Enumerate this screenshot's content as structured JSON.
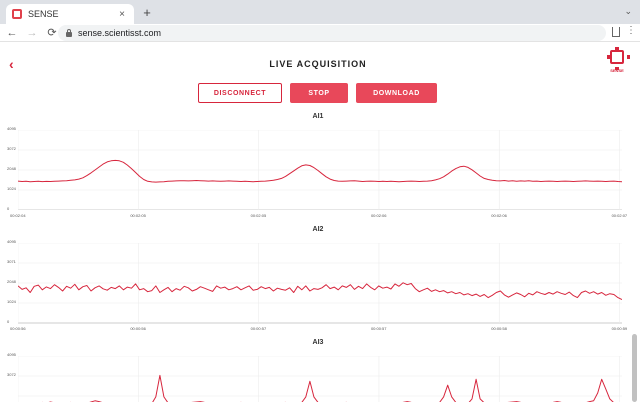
{
  "browser": {
    "tab_title": "SENSE",
    "close_glyph": "×",
    "newtab_glyph": "+",
    "window_menu_glyph": "⌄",
    "url": "sense.scientisst.com",
    "back_glyph": "←",
    "forward_glyph": "→",
    "reload_glyph": "⟳",
    "more_glyph": "⋮"
  },
  "page": {
    "back_glyph": "‹",
    "title": "LIVE ACQUISITION",
    "logo_text": "SENSE",
    "buttons": {
      "disconnect": "DISCONNECT",
      "stop": "STOP",
      "download": "DOWNLOAD"
    },
    "accent_color": "#d7263d"
  },
  "chart_data": [
    {
      "type": "line",
      "title": "AI1",
      "yticks": [
        "4095",
        "3072",
        "2048",
        "1024",
        "0"
      ],
      "ylim": [
        0,
        4095
      ],
      "xticks": [
        "00:02:04",
        "00:02:05",
        "00:02:05",
        "00:02:06",
        "00:02:06",
        "00:02:07"
      ],
      "grid": true,
      "series": [
        {
          "values": [
            1480,
            1460,
            1470,
            1450,
            1460,
            1470,
            1455,
            1465,
            1460,
            1470,
            1480,
            1490,
            1500,
            1520,
            1540,
            1580,
            1650,
            1760,
            1900,
            2050,
            2200,
            2350,
            2460,
            2520,
            2540,
            2520,
            2440,
            2300,
            2120,
            1920,
            1720,
            1560,
            1470,
            1440,
            1430,
            1440,
            1450,
            1470,
            1480,
            1490,
            1500,
            1500,
            1490,
            1500,
            1510,
            1500,
            1490,
            1480,
            1490,
            1480,
            1470,
            1480,
            1490,
            1480,
            1470,
            1460,
            1470,
            1460,
            1450,
            1460,
            1470,
            1480,
            1500,
            1520,
            1560,
            1620,
            1720,
            1860,
            2000,
            2140,
            2260,
            2310,
            2280,
            2170,
            2020,
            1860,
            1700,
            1580,
            1510,
            1480,
            1470,
            1480,
            1490,
            1500,
            1480,
            1460,
            1470,
            1480,
            1470,
            1460,
            1470,
            1460,
            1470,
            1460,
            1450,
            1460,
            1470,
            1480,
            1470,
            1460,
            1470,
            1480,
            1500,
            1540,
            1600,
            1700,
            1840,
            1990,
            2120,
            2210,
            2240,
            2180,
            2060,
            1900,
            1740,
            1620,
            1560,
            1520,
            1500,
            1490,
            1510,
            1480,
            1500,
            1470,
            1490,
            1480,
            1500,
            1470,
            1480,
            1460,
            1470,
            1480,
            1470,
            1460,
            1470,
            1480,
            1470,
            1460,
            1470,
            1480,
            1490,
            1480,
            1470,
            1480,
            1470,
            1460,
            1470,
            1480,
            1460,
            1450
          ]
        }
      ]
    },
    {
      "type": "line",
      "title": "AI2",
      "yticks": [
        "4095",
        "3071",
        "2048",
        "1024",
        "0"
      ],
      "ylim": [
        0,
        4095
      ],
      "xticks": [
        "00:00:56",
        "00:00:56",
        "00:00:57",
        "00:00:57",
        "00:00:58",
        "00:00:59"
      ],
      "grid": true,
      "series": [
        {
          "values": [
            1900,
            1720,
            1800,
            1560,
            1880,
            1940,
            1700,
            1850,
            1760,
            1960,
            1820,
            1640,
            1880,
            1780,
            1980,
            1700,
            1860,
            1920,
            1640,
            1800,
            1900,
            1750,
            1680,
            1820,
            1760,
            1900,
            1700,
            1840,
            1780,
            2000,
            1700,
            1760,
            1600,
            1660,
            1900,
            1560,
            1700,
            1820,
            1600,
            1760,
            1680,
            1880,
            1800,
            1640,
            1720,
            1860,
            1780,
            1700,
            1620,
            1900,
            1780,
            1840,
            1700,
            1760,
            1860,
            1700,
            1800,
            1900,
            1680,
            1720,
            1860,
            1760,
            1820,
            1640,
            1780,
            1720,
            1680,
            1800,
            1560,
            1880,
            1700,
            1900,
            1640,
            1760,
            1720,
            1800,
            1960,
            1760,
            1840,
            1700,
            1900,
            1820,
            1960,
            1720,
            1880,
            1760,
            2000,
            1820,
            1700,
            1900,
            1780,
            1840,
            1740,
            2000,
            1880,
            2060,
            1960,
            2020,
            1760,
            1600,
            1700,
            1780,
            1620,
            1700,
            1600,
            1660,
            1540,
            1600,
            1500,
            1560,
            1440,
            1500,
            1400,
            1480,
            1360,
            1460,
            1300,
            1420,
            1560,
            1640,
            1440,
            1320,
            1440,
            1540,
            1460,
            1340,
            1520,
            1440,
            1600,
            1520,
            1460,
            1560,
            1480,
            1600,
            1520,
            1460,
            1580,
            1400,
            1300,
            1560,
            1640,
            1520,
            1600,
            1480,
            1560,
            1420,
            1500,
            1460,
            1300,
            1200
          ]
        }
      ]
    },
    {
      "type": "line",
      "title": "AI3",
      "yticks": [
        "4095",
        "3072"
      ],
      "ylim": [
        0,
        4095
      ],
      "grid": true,
      "series": [
        {
          "values": [
            1640,
            1620,
            1680,
            1640,
            1700,
            1660,
            1720,
            1680,
            1740,
            1700,
            1660,
            1640,
            1680,
            1720,
            1660,
            1640,
            1620,
            1680,
            1740,
            1800,
            1760,
            1700,
            1660,
            1620,
            1600,
            1640,
            1680,
            1640,
            1620,
            1660,
            1700,
            1680,
            1640,
            1660,
            2000,
            3100,
            2000,
            1700,
            1660,
            1640,
            1620,
            1660,
            1700,
            1720,
            1740,
            1760,
            1720,
            1700,
            1680,
            1660,
            1640,
            1620,
            1660,
            1680,
            1700,
            1720,
            1680,
            1660,
            1640,
            1660,
            1680,
            1640,
            1620,
            1640,
            1680,
            1700,
            1720,
            1680,
            1640,
            1660,
            1720,
            2000,
            2800,
            2000,
            1720,
            1680,
            1660,
            1640,
            1660,
            1680,
            1700,
            1720,
            1700,
            1680,
            1660,
            1640,
            1660,
            1680,
            1700,
            1680,
            1660,
            1640,
            1620,
            1640,
            1680,
            1720,
            1760,
            1720,
            1700,
            1680,
            1660,
            1640,
            1660,
            1680,
            1720,
            2000,
            2600,
            2000,
            1720,
            1700,
            1680,
            1660,
            1900,
            2900,
            1900,
            1700,
            1680,
            1660,
            1640,
            1680,
            1700,
            1720,
            1740,
            1760,
            1720,
            1700,
            1680,
            1660,
            1640,
            1660,
            1680,
            1700,
            1720,
            1760,
            1720,
            1700,
            1680,
            1660,
            1640,
            1660,
            1700,
            1760,
            1800,
            2200,
            2900,
            2400,
            1900,
            1700,
            1640,
            1620
          ]
        }
      ]
    }
  ]
}
